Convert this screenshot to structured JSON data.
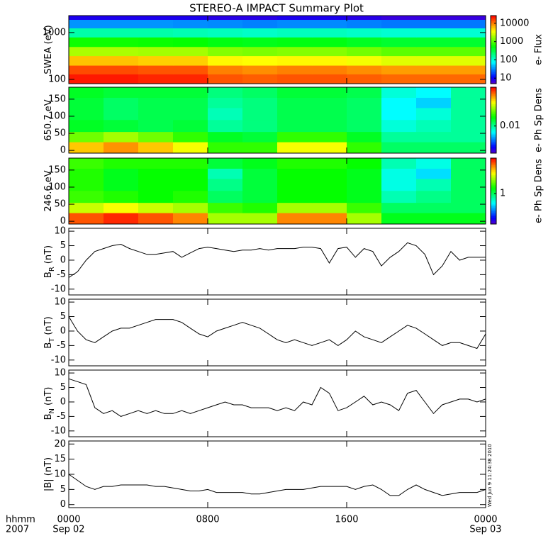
{
  "header": {
    "title": "STEREO-A IMPACT Summary Plot",
    "stamp": "Wed Jun 9 11:24:38 2010"
  },
  "time": {
    "xlim": [
      0,
      24
    ],
    "xticks": [
      {
        "value": 0,
        "label": "0000"
      },
      {
        "value": 8,
        "label": "0800"
      },
      {
        "value": 16,
        "label": "1600"
      },
      {
        "value": 24,
        "label": "0000"
      }
    ],
    "date_labels": [
      {
        "value": 0,
        "label": "Sep 02"
      },
      {
        "value": 24,
        "label": "Sep 03"
      }
    ],
    "unit_label": "hhmm",
    "year_label": "2007",
    "x": [
      0,
      0.5,
      1,
      1.5,
      2,
      2.5,
      3,
      3.5,
      4,
      4.5,
      5,
      5.5,
      6,
      6.5,
      7,
      7.5,
      8,
      8.5,
      9,
      9.5,
      10,
      10.5,
      11,
      11.5,
      12,
      12.5,
      13,
      13.5,
      14,
      14.5,
      15,
      15.5,
      16,
      16.5,
      17,
      17.5,
      18,
      18.5,
      19,
      19.5,
      20,
      20.5,
      21,
      21.5,
      22,
      22.5,
      23,
      23.5,
      24
    ],
    "xedges": [
      0,
      2,
      4,
      6,
      8,
      10,
      12,
      14,
      16,
      18,
      20,
      22,
      24
    ]
  },
  "chart_data": [
    {
      "type": "heatmap",
      "ylabel": "SWEA (eV)",
      "log_y": true,
      "ylim": [
        81,
        2300
      ],
      "yticks": [
        100,
        1000
      ],
      "yedges": [
        81,
        130,
        200,
        320,
        500,
        800,
        1250,
        1900,
        2300
      ],
      "values": [
        [
          22000,
          22000,
          20000,
          20000,
          14000,
          13000,
          14000,
          14000,
          13000,
          12000,
          12000,
          12000
        ],
        [
          15000,
          15000,
          14000,
          14000,
          10000,
          9000,
          10000,
          10000,
          9000,
          8000,
          8000,
          8000
        ],
        [
          6000,
          6000,
          5500,
          5500,
          4000,
          3800,
          4000,
          4000,
          3500,
          3000,
          3000,
          3000
        ],
        [
          2000,
          2000,
          1900,
          1900,
          1500,
          1400,
          1500,
          1500,
          1300,
          1100,
          1100,
          1100
        ],
        [
          600,
          600,
          580,
          560,
          480,
          450,
          480,
          480,
          420,
          380,
          380,
          380
        ],
        [
          150,
          150,
          150,
          140,
          130,
          120,
          130,
          130,
          120,
          110,
          110,
          110
        ],
        [
          35,
          35,
          35,
          33,
          32,
          30,
          32,
          32,
          30,
          28,
          28,
          28
        ],
        [
          9,
          9,
          9,
          9,
          8,
          8,
          9,
          9,
          8,
          7,
          7,
          7
        ]
      ],
      "colorbar": {
        "title": "e- Flux",
        "log": true,
        "clim": [
          5,
          26500
        ],
        "ticks": [
          10,
          100,
          1000,
          10000
        ]
      }
    },
    {
      "type": "heatmap",
      "ylabel": "650.7 eV",
      "log_y": false,
      "ylim": [
        -8,
        185
      ],
      "yticks": [
        0,
        50,
        100,
        150
      ],
      "yedges": [
        -8,
        25,
        55,
        90,
        125,
        155,
        185
      ],
      "values": [
        [
          0.05,
          0.06,
          0.05,
          0.04,
          0.02,
          0.02,
          0.04,
          0.04,
          0.02,
          0.012,
          0.012,
          0.012
        ],
        [
          0.025,
          0.03,
          0.025,
          0.02,
          0.015,
          0.014,
          0.02,
          0.02,
          0.015,
          0.01,
          0.01,
          0.01
        ],
        [
          0.015,
          0.014,
          0.013,
          0.014,
          0.01,
          0.011,
          0.013,
          0.013,
          0.012,
          0.008,
          0.009,
          0.01
        ],
        [
          0.014,
          0.012,
          0.013,
          0.013,
          0.009,
          0.011,
          0.013,
          0.013,
          0.012,
          0.007,
          0.008,
          0.01
        ],
        [
          0.014,
          0.012,
          0.013,
          0.013,
          0.01,
          0.011,
          0.013,
          0.013,
          0.012,
          0.007,
          0.006,
          0.01
        ],
        [
          0.015,
          0.014,
          0.014,
          0.014,
          0.011,
          0.012,
          0.014,
          0.014,
          0.013,
          0.008,
          0.007,
          0.01
        ]
      ],
      "colorbar": {
        "title": "e- Ph Sp Dens",
        "log": true,
        "clim": [
          0.002,
          0.1
        ],
        "ticks": [
          0.01
        ]
      }
    },
    {
      "type": "heatmap",
      "ylabel": "246.6 eV",
      "log_y": false,
      "ylim": [
        -8,
        185
      ],
      "yticks": [
        0,
        50,
        100,
        150
      ],
      "yedges": [
        -8,
        25,
        55,
        90,
        125,
        155,
        185
      ],
      "values": [
        [
          4,
          4.5,
          4,
          3.5,
          2,
          2,
          3.5,
          3.5,
          2,
          1.2,
          1.2,
          1.2
        ],
        [
          2.2,
          2.5,
          2.2,
          2,
          1.5,
          1.4,
          2,
          2,
          1.5,
          1,
          1,
          1
        ],
        [
          1.5,
          1.4,
          1.3,
          1.4,
          1,
          1.1,
          1.3,
          1.3,
          1.2,
          0.8,
          0.9,
          1
        ],
        [
          1.4,
          1.2,
          1.3,
          1.3,
          0.9,
          1.1,
          1.3,
          1.3,
          1.2,
          0.7,
          0.8,
          1
        ],
        [
          1.4,
          1.2,
          1.3,
          1.3,
          0.8,
          1.1,
          1.3,
          1.3,
          1.2,
          0.7,
          0.6,
          1
        ],
        [
          1.5,
          1.4,
          1.4,
          1.4,
          1.1,
          1.2,
          1.4,
          1.4,
          1.3,
          0.8,
          0.7,
          1
        ]
      ],
      "colorbar": {
        "title": "e- Ph Sp Dens",
        "log": true,
        "clim": [
          0.25,
          5
        ],
        "ticks": [
          1
        ]
      }
    },
    {
      "type": "line",
      "ylabel": "B",
      "ylabel_sub": "R",
      "ylabel_unit": "(nT)",
      "ylim": [
        -12,
        11
      ],
      "yticks": [
        -10,
        -5,
        0,
        5,
        10
      ],
      "color": "#000000",
      "values": [
        -6,
        -4,
        0,
        3,
        4,
        5,
        5.5,
        4,
        3,
        2,
        2,
        2.5,
        3,
        1,
        2.5,
        4,
        4.5,
        4,
        3.5,
        3,
        3.5,
        3.5,
        4,
        3.5,
        4,
        4,
        4,
        4.5,
        4.5,
        4,
        -1,
        4,
        4.5,
        1,
        4,
        3,
        -2,
        1,
        3,
        6,
        5,
        2,
        -5,
        -2,
        3,
        0,
        1,
        1,
        1
      ]
    },
    {
      "type": "line",
      "ylabel": "B",
      "ylabel_sub": "T",
      "ylabel_unit": "(nT)",
      "ylim": [
        -12,
        11
      ],
      "yticks": [
        -10,
        -5,
        0,
        5,
        10
      ],
      "color": "#000000",
      "values": [
        5,
        0,
        -3,
        -4,
        -2,
        0,
        1,
        1,
        2,
        3,
        4,
        4,
        4,
        3,
        1,
        -1,
        -2,
        0,
        1,
        2,
        3,
        2,
        1,
        -1,
        -3,
        -4,
        -3,
        -4,
        -5,
        -4,
        -3,
        -5,
        -3,
        0,
        -2,
        -3,
        -4,
        -2,
        0,
        2,
        1,
        -1,
        -3,
        -5,
        -4,
        -4,
        -5,
        -6,
        -1
      ]
    },
    {
      "type": "line",
      "ylabel": "B",
      "ylabel_sub": "N",
      "ylabel_unit": "(nT)",
      "ylim": [
        -12,
        11
      ],
      "yticks": [
        -10,
        -5,
        0,
        5,
        10
      ],
      "color": "#000000",
      "values": [
        8,
        7,
        6,
        -2,
        -4,
        -3,
        -5,
        -4,
        -3,
        -4,
        -3,
        -4,
        -4,
        -3,
        -4,
        -3,
        -2,
        -1,
        0,
        -1,
        -1,
        -2,
        -2,
        -2,
        -3,
        -2,
        -3,
        0,
        -1,
        5,
        3,
        -3,
        -2,
        0,
        2,
        -1,
        0,
        -1,
        -3,
        3,
        4,
        0,
        -4,
        -1,
        0,
        1,
        1,
        0,
        1
      ]
    },
    {
      "type": "line",
      "ylabel": "|B| (nT)",
      "ylim": [
        -1,
        21
      ],
      "yticks": [
        0,
        5,
        10,
        15,
        20
      ],
      "color": "#000000",
      "values": [
        10,
        8,
        6,
        5,
        6,
        6,
        6.5,
        6.5,
        6.5,
        6.5,
        6,
        6,
        5.5,
        5,
        4.5,
        4.5,
        5,
        4,
        4,
        4,
        4,
        3.5,
        3.5,
        4,
        4.5,
        5,
        5,
        5,
        5.5,
        6,
        6,
        6,
        6,
        5,
        6,
        6.5,
        5,
        3,
        3,
        5,
        6.5,
        5,
        4,
        3,
        3.5,
        4,
        4,
        4,
        5
      ]
    }
  ]
}
